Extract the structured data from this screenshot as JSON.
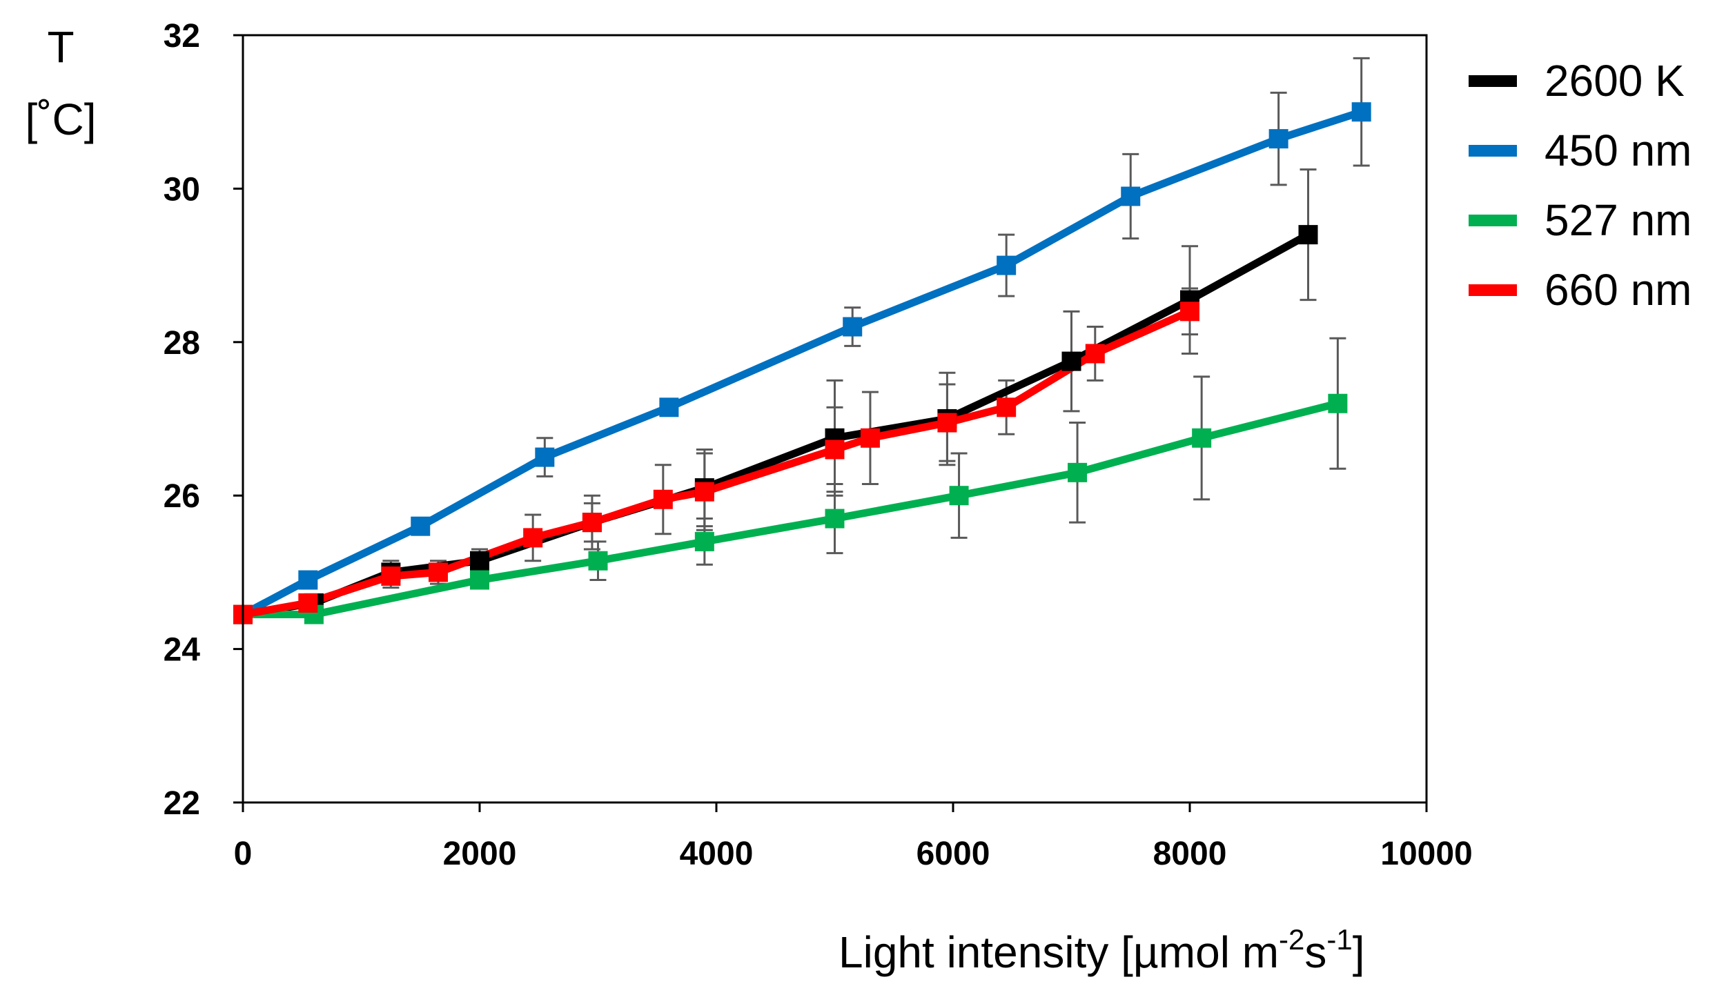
{
  "chart_data": {
    "type": "line",
    "title": "",
    "xlabel": {
      "main": "Light intensity [µmol m",
      "sup1": "-2",
      "mid": "s",
      "sup2": "-1",
      "end": "]"
    },
    "ylabel": {
      "line1": "T",
      "line2": "[˚C]"
    },
    "xlim": [
      0,
      10000
    ],
    "ylim": [
      22,
      32
    ],
    "xticks": [
      0,
      2000,
      4000,
      6000,
      8000,
      10000
    ],
    "yticks": [
      22,
      24,
      26,
      28,
      30,
      32
    ],
    "grid": false,
    "legend_position": "right",
    "series": [
      {
        "name": "2600 K",
        "color": "#000000",
        "x": [
          0,
          600,
          1250,
          2000,
          2950,
          3900,
          5000,
          5950,
          7000,
          8000,
          9000
        ],
        "y": [
          24.45,
          24.6,
          25.0,
          25.15,
          25.65,
          26.1,
          26.75,
          27.0,
          27.75,
          28.55,
          29.4
        ],
        "err": [
          0,
          0.1,
          0.15,
          0.15,
          0.35,
          0.5,
          0.75,
          0.6,
          0.65,
          0.7,
          0.85
        ]
      },
      {
        "name": "450 nm",
        "color": "#0070C0",
        "x": [
          0,
          550,
          1500,
          2550,
          3600,
          5150,
          6450,
          7500,
          8750,
          9450
        ],
        "y": [
          24.45,
          24.9,
          25.6,
          26.5,
          27.15,
          28.2,
          29.0,
          29.9,
          30.65,
          31.0
        ],
        "err": [
          0,
          0.05,
          0.05,
          0.25,
          0.05,
          0.25,
          0.4,
          0.55,
          0.6,
          0.7
        ]
      },
      {
        "name": "527 nm",
        "color": "#00B050",
        "x": [
          0,
          600,
          2000,
          3000,
          3900,
          5000,
          6050,
          7050,
          8100,
          9250
        ],
        "y": [
          24.45,
          24.45,
          24.9,
          25.15,
          25.4,
          25.7,
          26.0,
          26.3,
          26.75,
          27.2
        ],
        "err": [
          0,
          0.05,
          0.1,
          0.25,
          0.3,
          0.45,
          0.55,
          0.65,
          0.8,
          0.85
        ]
      },
      {
        "name": "660 nm",
        "color": "#FF0000",
        "x": [
          0,
          550,
          1250,
          1650,
          2450,
          2950,
          3550,
          3900,
          5000,
          5300,
          5950,
          6450,
          7200,
          8000
        ],
        "y": [
          24.45,
          24.6,
          24.95,
          25.0,
          25.45,
          25.65,
          25.95,
          26.05,
          26.6,
          26.75,
          26.95,
          27.15,
          27.85,
          28.4
        ],
        "err": [
          0,
          0.1,
          0.15,
          0.15,
          0.3,
          0.25,
          0.45,
          0.5,
          0.55,
          0.6,
          0.5,
          0.35,
          0.35,
          0.3
        ]
      }
    ]
  }
}
